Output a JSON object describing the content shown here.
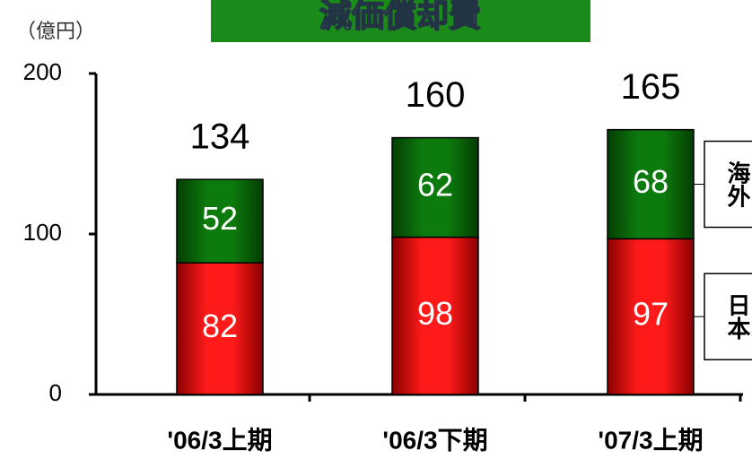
{
  "chart_data": {
    "type": "stacked_bar",
    "title": "減価償却費",
    "unit_label": "（億円）",
    "categories": [
      "'06/3上期",
      "'06/3下期",
      "'07/3上期"
    ],
    "series": [
      {
        "name": "日本",
        "color": "#e00000",
        "values": [
          82,
          98,
          97
        ]
      },
      {
        "name": "海外",
        "color": "#0a6e0a",
        "values": [
          52,
          62,
          68
        ]
      }
    ],
    "totals": [
      134,
      160,
      165
    ],
    "ylim": [
      0,
      200
    ],
    "yticks": [
      0,
      100,
      200
    ],
    "grid": false,
    "legend": "right"
  }
}
